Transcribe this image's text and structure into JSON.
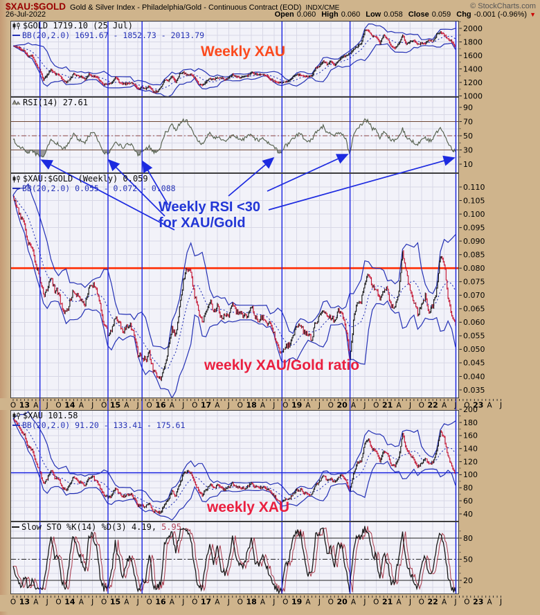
{
  "header": {
    "symbol": "$XAU:$GOLD",
    "description": "Gold & Silver Index - Philadelphia/Gold - Continuous Contract (EOD)",
    "exchange": "INDX/CME",
    "copyright": "© StockCharts.com",
    "date": "26-Jul-2022",
    "quote": {
      "open_label": "Open",
      "open": "0.060",
      "high_label": "High",
      "high": "0.060",
      "low_label": "Low",
      "low": "0.058",
      "close_label": "Close",
      "close": "0.059",
      "chg_label": "Chg",
      "chg": "-0.001 (-0.96%)",
      "direction_icon": "down-triangle-icon"
    }
  },
  "legends": {
    "gold": {
      "series": "$GOLD 1719.10 (25 Jul)",
      "bb": "BB(20,2.0) 1691.67 - 1852.73 - 2013.79"
    },
    "rsi": {
      "series": "RSI(14) 27.61"
    },
    "ratio": {
      "series": "$XAU:$GOLD (Weekly) 0.059",
      "bb": "BB(20,2.0) 0.055 - 0.072 - 0.088"
    },
    "xau": {
      "series": "$XAU 101.58",
      "bb": "BB(20,2.0) 91.20 - 133.41 - 175.61"
    },
    "sto": {
      "series_black": "Slow STO %K(14) %D(3) 4.19,",
      "series_red": "5.95"
    }
  },
  "annotations": {
    "gold": "Weekly XAU",
    "callout_line1": "Weekly RSI <30",
    "callout_line2": "for XAU/Gold",
    "ratio": "weekly XAU/Gold ratio",
    "xau": "weekly XAU"
  },
  "date_axis": [
    "O",
    "13",
    "A",
    "J",
    "O",
    "14",
    "A",
    "J",
    "O",
    "15",
    "A",
    "J",
    "O",
    "16",
    "A",
    "J",
    "O",
    "17",
    "A",
    "J",
    "O",
    "18",
    "A",
    "J",
    "O",
    "19",
    "A",
    "J",
    "O",
    "20",
    "A",
    "J",
    "O",
    "21",
    "A",
    "J",
    "O",
    "22",
    "A",
    "J",
    "O",
    "23",
    "A",
    "J"
  ],
  "colors": {
    "background_tan": "#cfb48c",
    "plot_bg": "#f2f2f9",
    "grid": "#d8d8e6",
    "border": "#3d3d3d",
    "candle_up": "#141414",
    "candle_down": "#c41230",
    "bb": "#2431b5",
    "rsi_line": "#56614e",
    "rsi_fill": "#8f8f8f",
    "rsi_band": "#6e4734",
    "rsi_mid": "#8a4242",
    "sto_k": "#181818",
    "sto_d": "#a8394a",
    "sto_band": "#1f1f1f",
    "red_line": "#ff2b00",
    "event_blue": "#1a23e0",
    "arrow_blue": "#1c2ae0",
    "annotation_orange": "#fb4a1e",
    "annotation_red": "#ea1f3f",
    "annotation_blue": "#2236d6",
    "symbol_maroon": "#990000"
  },
  "chart_data": {
    "type": "multi-panel-timeseries",
    "x_start": "2012-10",
    "x_step": "1 month (weekly bars on chart)",
    "x_count": 118,
    "event_line_dates": [
      "2013-05",
      "2014-11",
      "2015-08",
      "2018-09",
      "2020-03",
      "2022-07"
    ],
    "panels": [
      {
        "id": "gold",
        "type": "candlestick",
        "name": "$GOLD Weekly",
        "last": 1719.1,
        "overlay": "BB(20,2.0)",
        "yticks": [
          "2000",
          "1800",
          "1600",
          "1400",
          "1200",
          "1000"
        ],
        "values": [
          1740,
          1720,
          1690,
          1670,
          1590,
          1600,
          1470,
          1390,
          1230,
          1310,
          1390,
          1330,
          1320,
          1250,
          1200,
          1250,
          1330,
          1290,
          1290,
          1250,
          1320,
          1290,
          1280,
          1210,
          1170,
          1170,
          1180,
          1280,
          1210,
          1180,
          1180,
          1190,
          1170,
          1100,
          1130,
          1110,
          1140,
          1060,
          1060,
          1120,
          1230,
          1230,
          1290,
          1210,
          1320,
          1350,
          1310,
          1320,
          1270,
          1180,
          1150,
          1210,
          1250,
          1250,
          1270,
          1270,
          1240,
          1270,
          1320,
          1280,
          1270,
          1280,
          1300,
          1340,
          1320,
          1320,
          1320,
          1300,
          1250,
          1220,
          1200,
          1190,
          1210,
          1220,
          1280,
          1320,
          1310,
          1290,
          1280,
          1300,
          1410,
          1430,
          1520,
          1470,
          1510,
          1460,
          1520,
          1580,
          1590,
          1620,
          1690,
          1730,
          1780,
          1970,
          1970,
          1890,
          1880,
          1780,
          1900,
          1850,
          1730,
          1710,
          1770,
          1900,
          1770,
          1810,
          1820,
          1760,
          1780,
          1780,
          1830,
          1800,
          1910,
          1950,
          1900,
          1840,
          1810,
          1719
        ]
      },
      {
        "id": "rsi",
        "type": "line",
        "name": "RSI(14) of $XAU:$GOLD",
        "last": 27.61,
        "hlines_solid": [
          70,
          30
        ],
        "hline_dashdot": 50,
        "oversold_fill_below": 30,
        "yticks": [
          "90",
          "70",
          "50",
          "30",
          "10"
        ],
        "values": [
          45,
          38,
          34,
          31,
          26,
          29,
          24,
          22,
          20,
          32,
          44,
          40,
          38,
          32,
          34,
          44,
          52,
          46,
          42,
          40,
          50,
          54,
          50,
          38,
          27,
          25,
          31,
          42,
          38,
          33,
          37,
          39,
          32,
          23,
          27,
          30,
          36,
          27,
          29,
          34,
          52,
          58,
          66,
          58,
          66,
          72,
          70,
          62,
          52,
          42,
          38,
          48,
          54,
          46,
          49,
          43,
          42,
          46,
          53,
          48,
          44,
          45,
          49,
          52,
          46,
          44,
          47,
          42,
          40,
          34,
          28,
          25,
          36,
          39,
          46,
          51,
          53,
          46,
          42,
          44,
          56,
          58,
          63,
          55,
          52,
          48,
          56,
          52,
          44,
          24,
          50,
          62,
          64,
          72,
          70,
          60,
          58,
          48,
          56,
          50,
          44,
          43,
          51,
          60,
          47,
          44,
          41,
          37,
          44,
          47,
          43,
          45,
          56,
          60,
          52,
          40,
          31,
          27.6
        ]
      },
      {
        "id": "ratio",
        "type": "candlestick",
        "name": "$XAU:$GOLD Weekly",
        "last": 0.059,
        "overlay": "BB(20,2.0)",
        "resistance_line": 0.08,
        "yticks": [
          "0.110",
          "0.105",
          "0.100",
          "0.095",
          "0.090",
          "0.085",
          "0.080",
          "0.075",
          "0.070",
          "0.065",
          "0.060",
          "0.055",
          "0.050",
          "0.045",
          "0.040",
          "0.035"
        ],
        "values": [
          0.107,
          0.103,
          0.099,
          0.096,
          0.089,
          0.087,
          0.081,
          0.077,
          0.07,
          0.072,
          0.077,
          0.072,
          0.071,
          0.065,
          0.063,
          0.068,
          0.072,
          0.07,
          0.068,
          0.066,
          0.072,
          0.074,
          0.072,
          0.066,
          0.059,
          0.056,
          0.057,
          0.062,
          0.06,
          0.056,
          0.058,
          0.059,
          0.056,
          0.048,
          0.047,
          0.046,
          0.049,
          0.042,
          0.041,
          0.038,
          0.044,
          0.05,
          0.058,
          0.055,
          0.065,
          0.075,
          0.08,
          0.078,
          0.07,
          0.064,
          0.06,
          0.064,
          0.068,
          0.064,
          0.066,
          0.062,
          0.062,
          0.063,
          0.066,
          0.064,
          0.063,
          0.062,
          0.063,
          0.066,
          0.062,
          0.061,
          0.062,
          0.06,
          0.059,
          0.056,
          0.051,
          0.048,
          0.051,
          0.052,
          0.055,
          0.058,
          0.059,
          0.056,
          0.055,
          0.054,
          0.06,
          0.062,
          0.065,
          0.062,
          0.062,
          0.06,
          0.064,
          0.063,
          0.058,
          0.047,
          0.06,
          0.068,
          0.068,
          0.075,
          0.078,
          0.073,
          0.073,
          0.068,
          0.072,
          0.072,
          0.066,
          0.066,
          0.072,
          0.086,
          0.078,
          0.072,
          0.068,
          0.063,
          0.066,
          0.07,
          0.064,
          0.066,
          0.072,
          0.085,
          0.082,
          0.07,
          0.062,
          0.059
        ]
      },
      {
        "id": "xau",
        "type": "candlestick",
        "name": "$XAU Weekly",
        "last": 101.58,
        "overlay": "BB(20,2.0)",
        "support_line": 103,
        "yticks": [
          "200",
          "180",
          "160",
          "140",
          "120",
          "100",
          "80",
          "60",
          "40"
        ],
        "values": [
          186,
          177,
          167,
          160,
          142,
          139,
          119,
          107,
          86,
          94,
          107,
          96,
          94,
          81,
          76,
          85,
          96,
          90,
          88,
          82,
          95,
          96,
          92,
          80,
          69,
          65,
          67,
          79,
          73,
          66,
          68,
          70,
          65,
          53,
          53,
          51,
          56,
          45,
          43,
          42,
          54,
          61,
          75,
          67,
          86,
          101,
          105,
          103,
          89,
          75,
          69,
          77,
          85,
          80,
          84,
          79,
          77,
          80,
          87,
          82,
          80,
          79,
          82,
          88,
          81,
          80,
          82,
          78,
          74,
          68,
          61,
          57,
          62,
          63,
          70,
          76,
          77,
          72,
          70,
          70,
          85,
          89,
          99,
          91,
          94,
          88,
          97,
          99,
          92,
          76,
          101,
          118,
          121,
          148,
          154,
          138,
          137,
          121,
          137,
          133,
          114,
          113,
          127,
          163,
          139,
          130,
          124,
          111,
          117,
          125,
          117,
          119,
          137,
          166,
          156,
          129,
          112,
          101.6
        ]
      },
      {
        "id": "sto",
        "type": "line",
        "name": "Slow STO %K(14) %D(3)",
        "last_k": 4.19,
        "last_d": 5.95,
        "hlines_solid": [
          80,
          20
        ],
        "hline_dashdot": 50,
        "yticks": [
          "80",
          "50",
          "20"
        ],
        "values": [
          40,
          20,
          12,
          25,
          10,
          18,
          8,
          6,
          10,
          45,
          80,
          55,
          50,
          15,
          10,
          55,
          85,
          60,
          50,
          30,
          80,
          85,
          70,
          25,
          8,
          10,
          30,
          75,
          50,
          20,
          45,
          55,
          25,
          6,
          15,
          20,
          60,
          12,
          10,
          15,
          70,
          80,
          90,
          60,
          88,
          95,
          90,
          80,
          35,
          12,
          10,
          45,
          75,
          45,
          65,
          35,
          30,
          50,
          80,
          55,
          40,
          40,
          60,
          80,
          45,
          40,
          55,
          40,
          25,
          12,
          6,
          8,
          40,
          50,
          80,
          90,
          85,
          50,
          30,
          35,
          85,
          88,
          95,
          60,
          65,
          40,
          75,
          65,
          35,
          8,
          60,
          85,
          82,
          95,
          90,
          55,
          55,
          20,
          60,
          45,
          15,
          20,
          55,
          90,
          45,
          30,
          20,
          10,
          40,
          55,
          25,
          30,
          70,
          90,
          70,
          25,
          8,
          4.2
        ]
      }
    ]
  }
}
